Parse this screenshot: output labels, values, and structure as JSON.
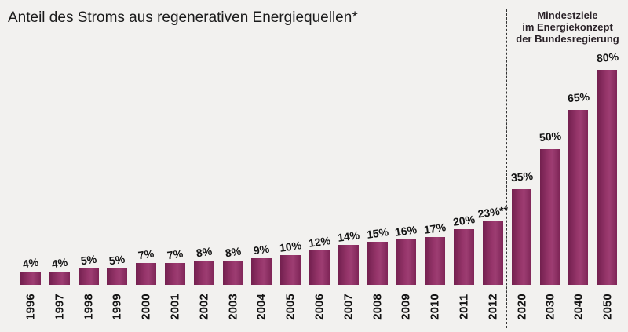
{
  "title": "Anteil des Stroms aus regenerativen Energiequellen*",
  "annotation": {
    "line1": "Mindestziele",
    "line2": "im Energiekonzept",
    "line3": "der Bundesregierung"
  },
  "colors": {
    "background": "#f2f1ef",
    "bar_dark": "#73204f",
    "bar_mid": "#96356a",
    "bar_light": "#9d3d72",
    "bar_edge": "#7e2557",
    "divider": "#333333",
    "text": "#141414"
  },
  "chart_data": {
    "type": "bar",
    "title": "Anteil des Stroms aus regenerativen Energiequellen*",
    "xlabel": "",
    "ylabel": "",
    "unit": "%",
    "ylim": [
      0,
      85
    ],
    "grid": false,
    "legend": false,
    "sections": [
      {
        "id": "historical",
        "bars": [
          {
            "x": "1996",
            "value": 4,
            "label": "4%"
          },
          {
            "x": "1997",
            "value": 4,
            "label": "4%"
          },
          {
            "x": "1998",
            "value": 5,
            "label": "5%"
          },
          {
            "x": "1999",
            "value": 5,
            "label": "5%"
          },
          {
            "x": "2000",
            "value": 7,
            "label": "7%"
          },
          {
            "x": "2001",
            "value": 7,
            "label": "7%"
          },
          {
            "x": "2002",
            "value": 8,
            "label": "8%"
          },
          {
            "x": "2003",
            "value": 8,
            "label": "8%"
          },
          {
            "x": "2004",
            "value": 9,
            "label": "9%"
          },
          {
            "x": "2005",
            "value": 10,
            "label": "10%"
          },
          {
            "x": "2006",
            "value": 12,
            "label": "12%"
          },
          {
            "x": "2007",
            "value": 14,
            "label": "14%"
          },
          {
            "x": "2008",
            "value": 15,
            "label": "15%"
          },
          {
            "x": "2009",
            "value": 16,
            "label": "16%"
          },
          {
            "x": "2010",
            "value": 17,
            "label": "17%"
          },
          {
            "x": "2011",
            "value": 20,
            "label": "20%"
          },
          {
            "x": "2012",
            "value": 23,
            "label": "23%**"
          }
        ]
      },
      {
        "id": "targets",
        "annotation": "Mindestziele im Energiekonzept der Bundesregierung",
        "bars": [
          {
            "x": "2020",
            "value": 35,
            "label": "35%"
          },
          {
            "x": "2030",
            "value": 50,
            "label": "50%"
          },
          {
            "x": "2040",
            "value": 65,
            "label": "65%"
          },
          {
            "x": "2050",
            "value": 80,
            "label": "80%"
          }
        ]
      }
    ]
  }
}
